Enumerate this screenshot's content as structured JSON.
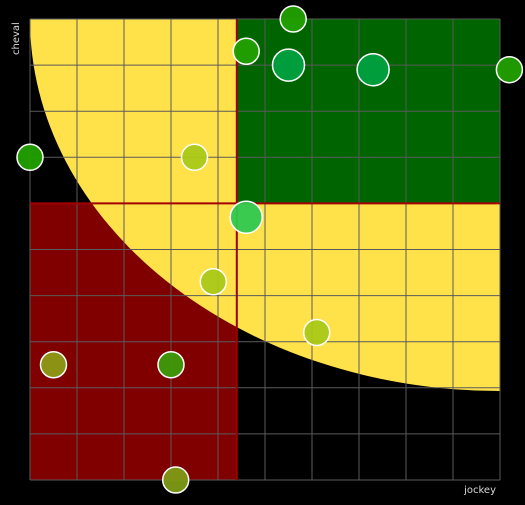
{
  "chart_data": {
    "type": "scatter",
    "title": "",
    "xlabel": "jockey",
    "ylabel": "cheval",
    "xlim": [
      0,
      10
    ],
    "ylim": [
      0,
      10
    ],
    "grid": true,
    "threshold": {
      "x": 4.4,
      "y": 6.0
    },
    "regions": {
      "low_low_color": "#800000",
      "high_high_color": "#006400",
      "curve_band_color": "#FFE14A",
      "threshold_line_color": "#A00000",
      "background_color": "#000000",
      "grid_color": "#5a5a5a"
    },
    "points": [
      {
        "x": 5.6,
        "y": 10.0,
        "size": "small",
        "color": "#22A000"
      },
      {
        "x": 5.5,
        "y": 9.0,
        "size": "large",
        "color": "#00A040"
      },
      {
        "x": 4.6,
        "y": 9.3,
        "size": "small",
        "color": "#22A000"
      },
      {
        "x": 7.3,
        "y": 8.9,
        "size": "large",
        "color": "#00A040"
      },
      {
        "x": 10.2,
        "y": 8.9,
        "size": "small",
        "color": "#22A000"
      },
      {
        "x": 0.0,
        "y": 7.0,
        "size": "small",
        "color": "#22A000"
      },
      {
        "x": 3.5,
        "y": 7.0,
        "size": "small",
        "color": "#AAC818"
      },
      {
        "x": 4.6,
        "y": 5.7,
        "size": "large",
        "color": "#30C850"
      },
      {
        "x": 3.9,
        "y": 4.3,
        "size": "small",
        "color": "#AAC818"
      },
      {
        "x": 6.1,
        "y": 3.2,
        "size": "small",
        "color": "#AAC818"
      },
      {
        "x": 0.5,
        "y": 2.5,
        "size": "small",
        "color": "#8C9A14"
      },
      {
        "x": 3.0,
        "y": 2.5,
        "size": "small",
        "color": "#3C9A0A"
      },
      {
        "x": 3.1,
        "y": 0.0,
        "size": "small",
        "color": "#7E9A14"
      }
    ]
  }
}
